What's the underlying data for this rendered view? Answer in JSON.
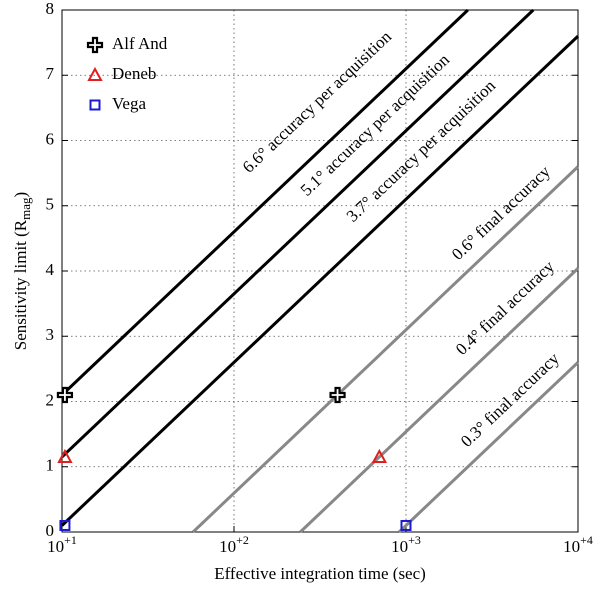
{
  "chart_data": {
    "type": "line",
    "log_x": true,
    "grid": true,
    "legend": "upper left",
    "x_label": "Effective integration time (sec)",
    "y_label": {
      "text": "Sensitivity limit (R",
      "sub": "mag",
      "close": ")"
    },
    "xlim": [
      10,
      10000
    ],
    "ylim": [
      0,
      8
    ],
    "xticks": [
      {
        "value": 10,
        "label": "10",
        "exponent": "+1"
      },
      {
        "value": 100,
        "label": "10",
        "exponent": "+2"
      },
      {
        "value": 1000,
        "label": "10",
        "exponent": "+3"
      },
      {
        "value": 10000,
        "label": "10",
        "exponent": "+4"
      }
    ],
    "yticks": [
      0,
      1,
      2,
      3,
      4,
      5,
      6,
      7,
      8
    ],
    "lines": [
      {
        "label": "6.6° accuracy per acquisition",
        "color": "#000000",
        "x": [
          10,
          2290
        ],
        "values": [
          2.1,
          8
        ]
      },
      {
        "label": "5.1° accuracy per acquisition",
        "color": "#000000",
        "x": [
          10,
          5495
        ],
        "values": [
          1.15,
          8
        ]
      },
      {
        "label": "3.7° accuracy per acquisition",
        "color": "#000000",
        "x": [
          10,
          10000
        ],
        "values": [
          0.1,
          7.6
        ]
      },
      {
        "label": "0.6° final accuracy",
        "color": "#888888",
        "x": [
          57.8,
          10000
        ],
        "values": [
          0,
          5.6
        ]
      },
      {
        "label": "0.4° final accuracy",
        "color": "#888888",
        "x": [
          243,
          10000
        ],
        "values": [
          0,
          4.04
        ]
      },
      {
        "label": "0.3° final accuracy",
        "color": "#888888",
        "x": [
          912,
          10000
        ],
        "values": [
          0,
          2.6
        ]
      }
    ],
    "series": [
      {
        "name": "Alf And",
        "marker": "plus",
        "color": "#000000",
        "x": [
          10.4,
          400
        ],
        "values": [
          2.1,
          2.1
        ]
      },
      {
        "name": "Deneb",
        "marker": "triangle",
        "color": "#e02020",
        "x": [
          10.4,
          700
        ],
        "values": [
          1.15,
          1.15
        ]
      },
      {
        "name": "Vega",
        "marker": "square",
        "color": "#1a1ad0",
        "x": [
          10.4,
          1000
        ],
        "values": [
          0.1,
          0.1
        ]
      }
    ]
  }
}
